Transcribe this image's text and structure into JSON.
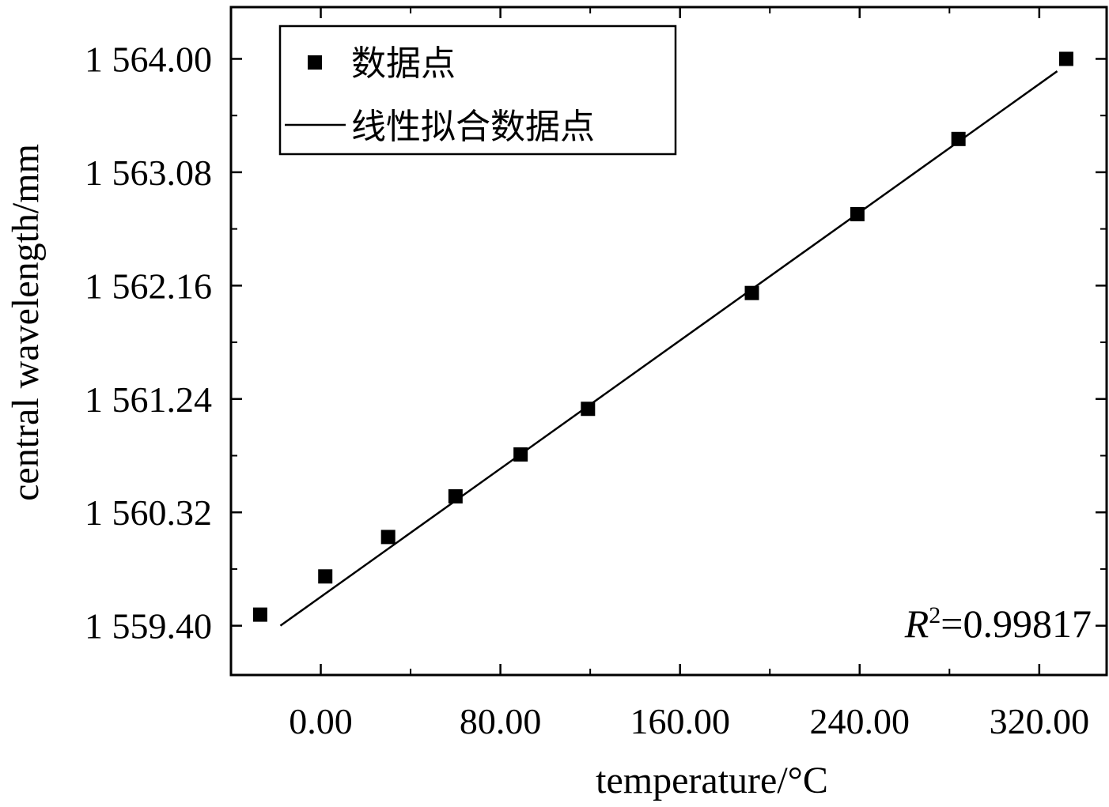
{
  "chart_data": {
    "type": "scatter",
    "title": "",
    "xlabel": "temperature/°C",
    "ylabel": "central wavelength/mm",
    "xlim": [
      -40,
      350
    ],
    "ylim": [
      1559.0,
      1564.42
    ],
    "x_ticks": [
      0,
      80,
      160,
      240,
      320
    ],
    "x_tick_labels": [
      "0.00",
      "80.00",
      "160.00",
      "240.00",
      "320.00"
    ],
    "y_ticks": [
      1559.4,
      1560.32,
      1561.24,
      1562.16,
      1563.08,
      1564.0
    ],
    "y_tick_labels": [
      "1 559.40",
      "1 560.32",
      "1 561.24",
      "1 562.16",
      "1 563.08",
      "1 564.00"
    ],
    "grid": false,
    "legend_position": "top-left",
    "series": [
      {
        "name": "数据点",
        "kind": "scatter",
        "marker": "square",
        "color": "#000000",
        "x": [
          -27,
          2,
          30,
          60,
          89,
          119,
          192,
          239,
          284,
          332
        ],
        "y": [
          1559.49,
          1559.8,
          1560.12,
          1560.45,
          1560.79,
          1561.16,
          1562.1,
          1562.74,
          1563.35,
          1564.0
        ]
      },
      {
        "name": "线性拟合数据点",
        "kind": "line",
        "color": "#000000",
        "x": [
          -18,
          328
        ],
        "y": [
          1559.4,
          1563.9
        ]
      }
    ],
    "annotation": {
      "symbol": "R",
      "superscript": "2",
      "text": "=0.99817",
      "position": "bottom-right"
    }
  }
}
